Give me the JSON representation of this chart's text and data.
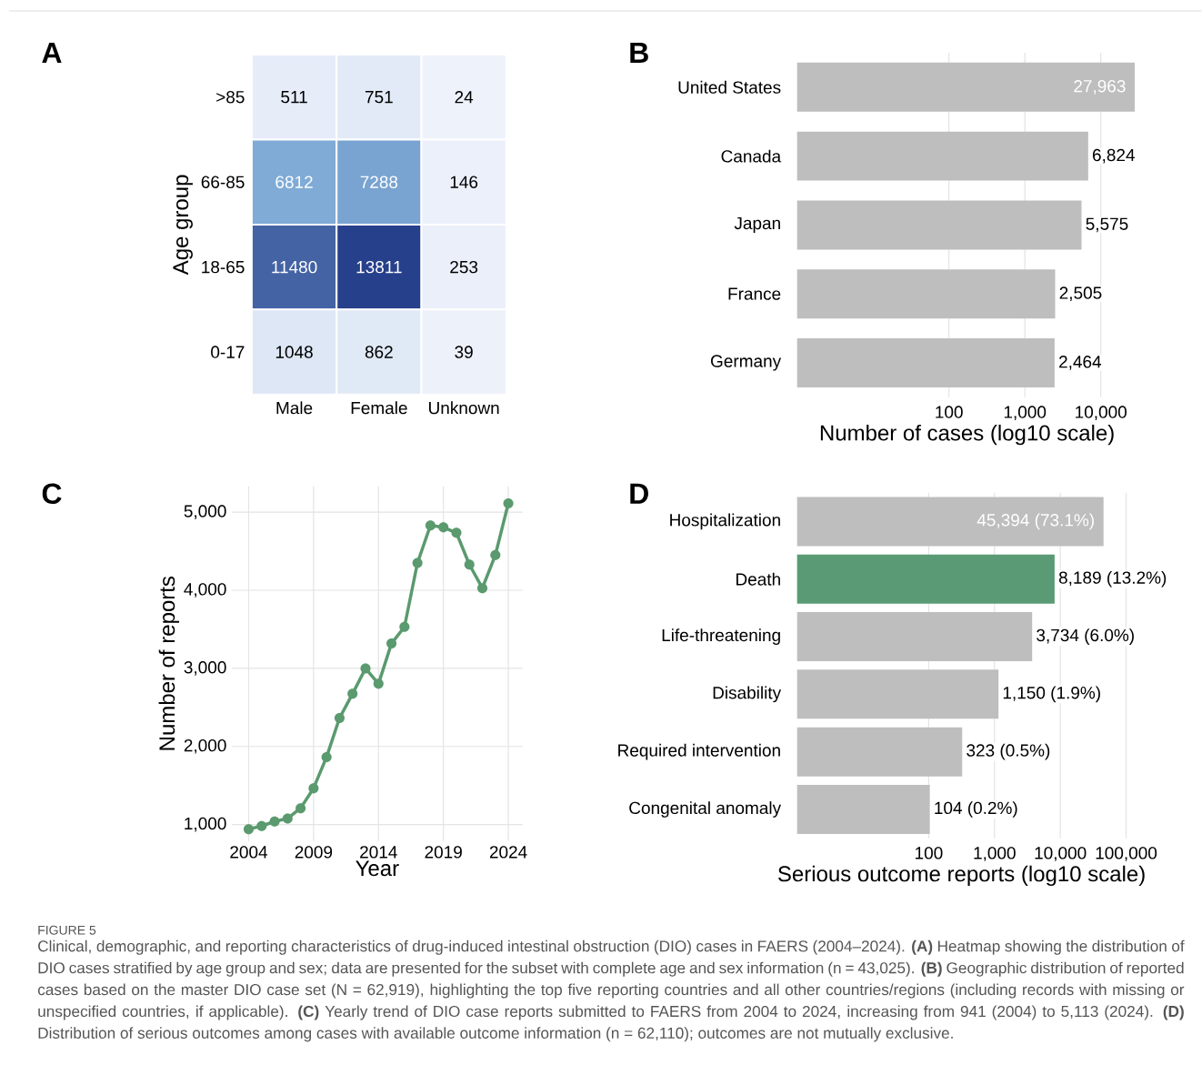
{
  "chart_data": [
    {
      "type": "heatmap",
      "title": "A",
      "ylabel": "Age group",
      "data_labels": true,
      "categories": [
        "Male",
        "Female",
        "Unknown"
      ],
      "y_categories": [
        ">85",
        "66-85",
        "18-65",
        "0-17"
      ],
      "cells": [
        [
          511,
          751,
          24
        ],
        [
          6812,
          7288,
          146
        ],
        [
          11480,
          13811,
          253
        ],
        [
          1048,
          862,
          39
        ]
      ]
    },
    {
      "type": "bar",
      "title": "B",
      "orientation": "horizontal",
      "log": "x",
      "grid": "x",
      "categories": [
        "United States",
        "Canada",
        "Japan",
        "France",
        "Germany"
      ],
      "values": [
        27963,
        6824,
        5575,
        2505,
        2464
      ],
      "color": "#bebebe",
      "value_labels": [
        "27,963",
        "6,824",
        "5,575",
        "2,505",
        "2,464"
      ],
      "xlim": [
        1,
        30000
      ],
      "xticks": [
        100,
        {
          "value": 1000,
          "label": "1,000"
        },
        {
          "value": 10000,
          "label": "10,000"
        }
      ],
      "xlabel": "Number of cases (log10 scale)"
    },
    {
      "type": "line",
      "title": "C",
      "xlabel": "Year",
      "ylabel": "Number of reports",
      "grid": true,
      "marker": "circle",
      "color": "#5a9a6e",
      "x": [
        2004,
        2005,
        2006,
        2007,
        2008,
        2009,
        2010,
        2011,
        2012,
        2013,
        2014,
        2015,
        2016,
        2017,
        2018,
        2019,
        2020,
        2021,
        2022,
        2023,
        2024
      ],
      "values": [
        941,
        981,
        1039,
        1078,
        1209,
        1465,
        1864,
        2364,
        2674,
        2999,
        2802,
        3318,
        3531,
        4349,
        4829,
        4806,
        4736,
        4329,
        4027,
        4450,
        5113
      ],
      "xlim": [
        2002.7,
        2025.1
      ],
      "ylim": [
        790,
        5330
      ],
      "xticks": [
        2004,
        2009,
        2014,
        2019,
        2024
      ],
      "yticks": [
        {
          "value": 1000,
          "label": "1,000"
        },
        {
          "value": 2000,
          "label": "2,000"
        },
        {
          "value": 3000,
          "label": "3,000"
        },
        {
          "value": 4000,
          "label": "4,000"
        },
        {
          "value": 5000,
          "label": "5,000"
        }
      ]
    },
    {
      "type": "bar",
      "title": "D",
      "orientation": "horizontal",
      "log": "x",
      "grid": "x",
      "categories": [
        "Hospitalization",
        "Death",
        "Life-threatening",
        "Disability",
        "Required intervention",
        "Congenital anomaly"
      ],
      "values": [
        45394,
        8189,
        3734,
        1150,
        323,
        104
      ],
      "colors": [
        "#bebebe",
        "#5a9a74",
        "#bebebe",
        "#bebebe",
        "#bebebe",
        "#bebebe"
      ],
      "value_labels": [
        "45,394 (73.1%)",
        "8,189 (13.2%)",
        "3,734 (6.0%)",
        "1,150 (1.9%)",
        "323 (0.5%)",
        "104 (0.2%)"
      ],
      "xlim": [
        1,
        100000
      ],
      "xticks": [
        100,
        {
          "value": 1000,
          "label": "1,000"
        },
        {
          "value": 10000,
          "label": "10,000"
        },
        {
          "value": 100000,
          "label": "100,000"
        }
      ],
      "xlabel": "Serious outcome reports (log10 scale)",
      "annotations": [
        "FIGURE 5",
        "Clinical, demographic, and reporting characteristics of drug-induced intestinal obstruction (DIO) cases in FAERS (2004–2024). **(A)** Heatmap showing the distribution of DIO cases stratified by age group and sex; data are presented for the subset with complete age and sex information (n = 43,025). **(B)** Geographic distribution of reported cases based on the master DIO case set (N = 62,919), highlighting the top five reporting countries and all other countries/regions (including records with missing or unspecified countries, if applicable). **(C)** Yearly trend of DIO case reports submitted to FAERS from 2004 to 2024, increasing from 941 (2004) to 5,113 (2024). **(D)** Distribution of serious outcomes among cases with available outcome information (n = 62,110); outcomes are not mutually exclusive."
      ]
    }
  ]
}
